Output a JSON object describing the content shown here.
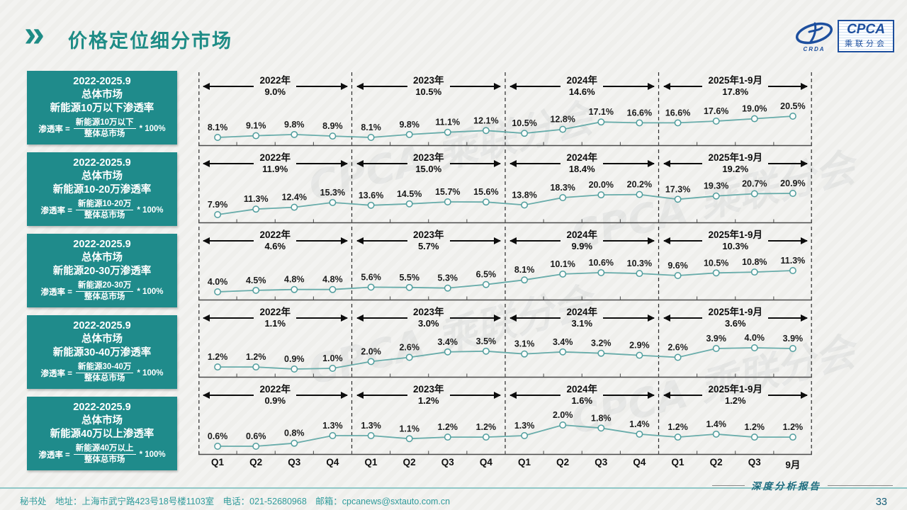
{
  "header": {
    "title": "价格定位细分市场"
  },
  "logo": {
    "crda": "CRDA",
    "cpca": "CPCA",
    "name_cn": "乘联分会"
  },
  "colors": {
    "accent_teal": "#1e8c86",
    "box_teal": "#1f8b8b",
    "line_teal": "#68acaa",
    "marker_stroke": "#4f9d9d",
    "logo_blue": "#1d4f9e",
    "footer_teal": "#2f9b9b"
  },
  "sidebar": {
    "boxes": [
      {
        "lines": [
          "2022-2025.9",
          "总体市场",
          "新能源10万以下渗透率"
        ],
        "formula": {
          "prefix": "渗透率 =",
          "numerator": "新能源10万以下",
          "denominator": "整体总市场",
          "multiplier": "* 100%"
        }
      },
      {
        "lines": [
          "2022-2025.9",
          "总体市场",
          "新能源10-20万渗透率"
        ],
        "formula": {
          "prefix": "渗透率 =",
          "numerator": "新能源10-20万",
          "denominator": "整体总市场",
          "multiplier": "* 100%"
        }
      },
      {
        "lines": [
          "2022-2025.9",
          "总体市场",
          "新能源20-30万渗透率"
        ],
        "formula": {
          "prefix": "渗透率 =",
          "numerator": "新能源20-30万",
          "denominator": "整体总市场",
          "multiplier": "* 100%"
        }
      },
      {
        "lines": [
          "2022-2025.9",
          "总体市场",
          "新能源30-40万渗透率"
        ],
        "formula": {
          "prefix": "渗透率 =",
          "numerator": "新能源30-40万",
          "denominator": "整体总市场",
          "multiplier": "* 100%"
        }
      },
      {
        "lines": [
          "2022-2025.9",
          "总体市场",
          "新能源40万以上渗透率"
        ],
        "formula": {
          "prefix": "渗透率 =",
          "numerator": "新能源40万以上",
          "denominator": "整体总市场",
          "multiplier": "* 100%"
        }
      }
    ]
  },
  "chart_data": [
    {
      "type": "line",
      "name": "新能源10万以下渗透率",
      "segments": [
        {
          "label": "2022年",
          "rate": "9.0%"
        },
        {
          "label": "2023年",
          "rate": "10.5%"
        },
        {
          "label": "2024年",
          "rate": "14.6%"
        },
        {
          "label": "2025年1-9月",
          "rate": "17.8%"
        }
      ],
      "x": [
        "Q1",
        "Q2",
        "Q3",
        "Q4",
        "Q1",
        "Q2",
        "Q3",
        "Q4",
        "Q1",
        "Q2",
        "Q3",
        "Q4",
        "Q1",
        "Q2",
        "Q3",
        "9月"
      ],
      "values": [
        8.1,
        9.1,
        9.8,
        8.9,
        8.1,
        9.8,
        11.1,
        12.1,
        10.5,
        12.8,
        17.1,
        16.6,
        16.6,
        17.6,
        19.0,
        20.5
      ]
    },
    {
      "type": "line",
      "name": "新能源10-20万渗透率",
      "segments": [
        {
          "label": "2022年",
          "rate": "11.9%"
        },
        {
          "label": "2023年",
          "rate": "15.0%"
        },
        {
          "label": "2024年",
          "rate": "18.4%"
        },
        {
          "label": "2025年1-9月",
          "rate": "19.2%"
        }
      ],
      "x": [
        "Q1",
        "Q2",
        "Q3",
        "Q4",
        "Q1",
        "Q2",
        "Q3",
        "Q4",
        "Q1",
        "Q2",
        "Q3",
        "Q4",
        "Q1",
        "Q2",
        "Q3",
        "9月"
      ],
      "values": [
        7.9,
        11.3,
        12.4,
        15.3,
        13.6,
        14.5,
        15.7,
        15.6,
        13.8,
        18.3,
        20.0,
        20.2,
        17.3,
        19.3,
        20.7,
        20.9
      ]
    },
    {
      "type": "line",
      "name": "新能源20-30万渗透率",
      "segments": [
        {
          "label": "2022年",
          "rate": "4.6%"
        },
        {
          "label": "2023年",
          "rate": "5.7%"
        },
        {
          "label": "2024年",
          "rate": "9.9%"
        },
        {
          "label": "2025年1-9月",
          "rate": "10.3%"
        }
      ],
      "x": [
        "Q1",
        "Q2",
        "Q3",
        "Q4",
        "Q1",
        "Q2",
        "Q3",
        "Q4",
        "Q1",
        "Q2",
        "Q3",
        "Q4",
        "Q1",
        "Q2",
        "Q3",
        "9月"
      ],
      "values": [
        4.0,
        4.5,
        4.8,
        4.8,
        5.6,
        5.5,
        5.3,
        6.5,
        8.1,
        10.1,
        10.6,
        10.3,
        9.6,
        10.5,
        10.8,
        11.3
      ]
    },
    {
      "type": "line",
      "name": "新能源30-40万渗透率",
      "segments": [
        {
          "label": "2022年",
          "rate": "1.1%"
        },
        {
          "label": "2023年",
          "rate": "3.0%"
        },
        {
          "label": "2024年",
          "rate": "3.1%"
        },
        {
          "label": "2025年1-9月",
          "rate": "3.6%"
        }
      ],
      "x": [
        "Q1",
        "Q2",
        "Q3",
        "Q4",
        "Q1",
        "Q2",
        "Q3",
        "Q4",
        "Q1",
        "Q2",
        "Q3",
        "Q4",
        "Q1",
        "Q2",
        "Q3",
        "9月"
      ],
      "values": [
        1.2,
        1.2,
        0.9,
        1.0,
        2.0,
        2.6,
        3.4,
        3.5,
        3.1,
        3.4,
        3.2,
        2.9,
        2.6,
        3.9,
        4.0,
        3.9
      ]
    },
    {
      "type": "line",
      "name": "新能源40万以上渗透率",
      "segments": [
        {
          "label": "2022年",
          "rate": "0.9%"
        },
        {
          "label": "2023年",
          "rate": "1.2%"
        },
        {
          "label": "2024年",
          "rate": "1.6%"
        },
        {
          "label": "2025年1-9月",
          "rate": "1.2%"
        }
      ],
      "x": [
        "Q1",
        "Q2",
        "Q3",
        "Q4",
        "Q1",
        "Q2",
        "Q3",
        "Q4",
        "Q1",
        "Q2",
        "Q3",
        "Q4",
        "Q1",
        "Q2",
        "Q3",
        "9月"
      ],
      "values": [
        0.6,
        0.6,
        0.8,
        1.3,
        1.3,
        1.1,
        1.2,
        1.2,
        1.3,
        2.0,
        1.8,
        1.4,
        1.2,
        1.4,
        1.2,
        1.2
      ]
    }
  ],
  "watermark": "CPCA 乘联分会",
  "footer": {
    "left": "秘书处　地址：上海市武宁路423号18号楼1103室　电话：021-52680968　邮箱：cpcanews@sxtauto.com.cn",
    "report": "深度分析报告",
    "page": "33"
  }
}
